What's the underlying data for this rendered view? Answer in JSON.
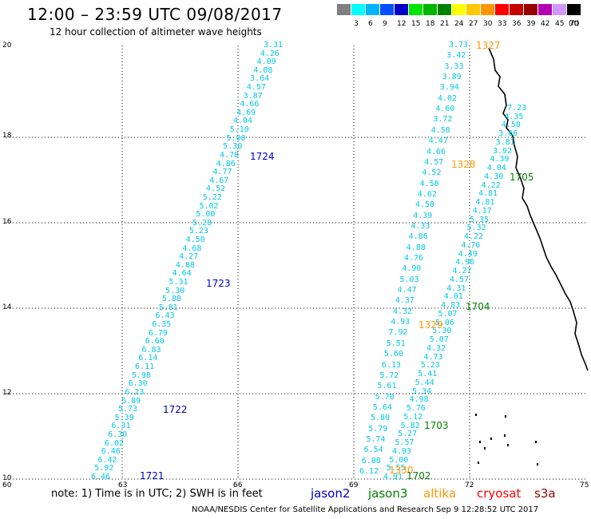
{
  "title": "12:00 – 23:59 UTC 09/08/2017",
  "subtitle": "12 hour collection of altimeter wave heights",
  "legend": {
    "unit": "(ft)",
    "items": [
      {
        "label": "",
        "color": "#808080"
      },
      {
        "label": "3",
        "color": "#00ffff"
      },
      {
        "label": "6",
        "color": "#00b4ff"
      },
      {
        "label": "9",
        "color": "#0050ff"
      },
      {
        "label": "12",
        "color": "#0000c8"
      },
      {
        "label": "15",
        "color": "#00e600"
      },
      {
        "label": "18",
        "color": "#00b400"
      },
      {
        "label": "21",
        "color": "#008200"
      },
      {
        "label": "24",
        "color": "#ffff00"
      },
      {
        "label": "27",
        "color": "#ffc800"
      },
      {
        "label": "30",
        "color": "#ff9600"
      },
      {
        "label": "33",
        "color": "#ff0000"
      },
      {
        "label": "36",
        "color": "#c80000"
      },
      {
        "label": "39",
        "color": "#960000"
      },
      {
        "label": "42",
        "color": "#b400b4"
      },
      {
        "label": "45",
        "color": "#d296ff"
      },
      {
        "label": "70",
        "color": "#000000"
      }
    ]
  },
  "axes": {
    "lat_ticks": [
      "20",
      "18",
      "16",
      "14",
      "12",
      "10"
    ],
    "lon_ticks": [
      "60",
      "63",
      "66",
      "69",
      "72",
      "75"
    ]
  },
  "colors": {
    "wave": "#00c8e8",
    "jason2": "#0000c8",
    "jason3": "#008200",
    "altika": "#ff9600",
    "cryosat": "#ff0000",
    "s3a": "#960000"
  },
  "track_labels": {
    "t1721": "1721",
    "t1722": "1722",
    "t1723": "1723",
    "t1724": "1724",
    "t1327": "1327",
    "t1328": "1328",
    "t1329": "1329",
    "t1330": "1330",
    "t1702": "1702",
    "t1703": "1703",
    "t1704": "1704",
    "t1705": "1705"
  },
  "tracks": [
    {
      "name": "jason2-west",
      "color": "wave",
      "values": [
        "3.31",
        "4.26",
        "4.09",
        "4.08",
        "3.64",
        "4.57",
        "3.87",
        "4.66",
        "4.69",
        "4.04",
        "5.10",
        "5.00",
        "5.30",
        "4.78",
        "4.86",
        "4.77",
        "4.67",
        "4.52",
        "5.22",
        "5.02",
        "5.00",
        "5.28",
        "5.23",
        "4.50",
        "4.68",
        "4.27",
        "4.88",
        "4.64",
        "5.31",
        "5.30",
        "5.88",
        "5.81",
        "6.43",
        "6.35",
        "6.79",
        "6.60",
        "6.83",
        "6.14",
        "6.11",
        "5.98",
        "6.30",
        "6.23",
        "5.89",
        "5.73",
        "5.39",
        "6.31",
        "6.30",
        "6.02",
        "6.46",
        "6.42",
        "5.92",
        "6.46"
      ]
    },
    {
      "name": "altika-west",
      "color": "wave",
      "values": [
        "3.73",
        "3.42",
        "3.33",
        "3.89",
        "3.94",
        "4.02",
        "4.60",
        "3.72",
        "4.58",
        "4.47",
        "4.66",
        "4.57",
        "4.52",
        "4.58",
        "4.62",
        "4.58",
        "4.39",
        "4.33",
        "4.86",
        "4.88",
        "4.76",
        "4.90",
        "5.03",
        "4.47",
        "4.37",
        "4.32",
        "4.93",
        "7.92",
        "5.51",
        "5.60",
        "6.13",
        "5.72",
        "5.61",
        "5.70",
        "5.64",
        "5.80",
        "5.79",
        "5.74",
        "6.54",
        "6.08",
        "6.12"
      ]
    },
    {
      "name": "jason3-east",
      "color": "wave",
      "values": [
        "7.23",
        "4.35",
        "4.58",
        "3.86",
        "3.81",
        "3.92",
        "4.39",
        "4.04",
        "4.30",
        "4.22",
        "4.81",
        "4.81",
        "4.17",
        "5.35",
        "5.32",
        "4.22",
        "4.76",
        "4.49",
        "4.96",
        "4.27",
        "4.57",
        "4.31",
        "4.01",
        "4.83",
        "5.07",
        "5.06",
        "5.30",
        "5.07",
        "4.32",
        "4.73",
        "5.23",
        "5.41",
        "5.44",
        "5.34",
        "4.98",
        "5.76",
        "5.12",
        "5.82",
        "5.27",
        "5.57",
        "4.93",
        "5.00",
        "5.55",
        "4.91"
      ]
    }
  ],
  "note": "note: 1) Time is in UTC; 2) SWH is in feet",
  "satellites": {
    "jason2": "jason2",
    "jason3": "jason3",
    "altika": "altika",
    "cryosat": "cryosat",
    "s3a": "s3a"
  },
  "credit": "NOAA/NESDIS Center for Satellite Applications and Research    Sep  9 12:28:52 UTC 2017"
}
